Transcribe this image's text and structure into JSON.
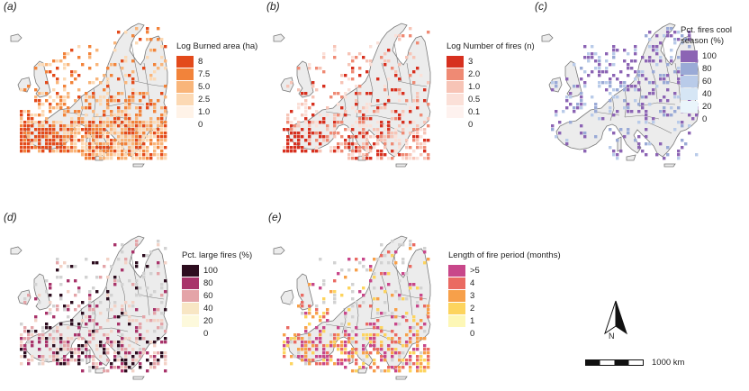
{
  "panels": [
    {
      "id": "a",
      "label": "(a)",
      "legend": {
        "title": "Log Burned area (ha)",
        "entries": [
          {
            "label": "8",
            "color": "#e34a1b"
          },
          {
            "label": "7.5",
            "color": "#f2833a"
          },
          {
            "label": "5.0",
            "color": "#f9b57a"
          },
          {
            "label": "2.5",
            "color": "#fcd9b4"
          },
          {
            "label": "1.0",
            "color": "#fff3e8"
          },
          {
            "label": "0",
            "color": ""
          }
        ]
      },
      "pixel_colors": [
        "#e34a1b",
        "#f2833a",
        "#f9b57a",
        "#fcd9b4"
      ],
      "pixel_density": 0.55
    },
    {
      "id": "b",
      "label": "(b)",
      "legend": {
        "title": "Log Number of fires (n)",
        "entries": [
          {
            "label": "3",
            "color": "#d7301f"
          },
          {
            "label": "2.0",
            "color": "#ef8a74"
          },
          {
            "label": "1.0",
            "color": "#f7c4b6"
          },
          {
            "label": "0.5",
            "color": "#fbe0d8"
          },
          {
            "label": "0.1",
            "color": "#fef2ef"
          },
          {
            "label": "0",
            "color": ""
          }
        ]
      },
      "pixel_colors": [
        "#d7301f",
        "#ef8a74",
        "#f7c4b6",
        "#fbe0d8"
      ],
      "pixel_density": 0.35
    },
    {
      "id": "c",
      "label": "(c)",
      "legend": {
        "title": "Pct. fires cool season (%)",
        "entries": [
          {
            "label": "100",
            "color": "#8c64b4"
          },
          {
            "label": "80",
            "color": "#9aaad6"
          },
          {
            "label": "60",
            "color": "#b9cbe9"
          },
          {
            "label": "40",
            "color": "#d6e6f5"
          },
          {
            "label": "20",
            "color": "#eaf5fb"
          },
          {
            "label": "0",
            "color": ""
          }
        ]
      },
      "pixel_colors": [
        "#8c64b4",
        "#9aaad6",
        "#b9cbe9",
        "#8c64b4"
      ],
      "pixel_density": 0.22
    },
    {
      "id": "d",
      "label": "(d)",
      "legend": {
        "title": "Pct. large fires (%)",
        "entries": [
          {
            "label": "100",
            "color": "#2d0d1f"
          },
          {
            "label": "80",
            "color": "#a8336a"
          },
          {
            "label": "60",
            "color": "#e4a4a8"
          },
          {
            "label": "40",
            "color": "#f8e6c4"
          },
          {
            "label": "20",
            "color": "#fdf9dc"
          },
          {
            "label": "0",
            "color": ""
          }
        ]
      },
      "pixel_colors": [
        "#2d0d1f",
        "#a8336a",
        "#e4a4a8",
        "#f3d2c6"
      ],
      "pixel_density": 0.3
    },
    {
      "id": "e",
      "label": "(e)",
      "legend": {
        "title": "Length of fire period (months)",
        "entries": [
          {
            "label": ">5",
            "color": "#c8478a"
          },
          {
            "label": "4",
            "color": "#ea6a62"
          },
          {
            "label": "3",
            "color": "#f7a04a"
          },
          {
            "label": "2",
            "color": "#fdd45e"
          },
          {
            "label": "1",
            "color": "#fdf7b6"
          },
          {
            "label": "0",
            "color": ""
          }
        ]
      },
      "pixel_colors": [
        "#c8478a",
        "#ea6a62",
        "#f7a04a",
        "#fdd45e"
      ],
      "pixel_density": 0.3
    }
  ],
  "map_colors": {
    "land": "#ececec",
    "border": "#7a7a7a",
    "no_data": "#d2d2d2"
  },
  "north_arrow": {
    "label": "N"
  },
  "scale_bar": {
    "label": "1000 km"
  }
}
